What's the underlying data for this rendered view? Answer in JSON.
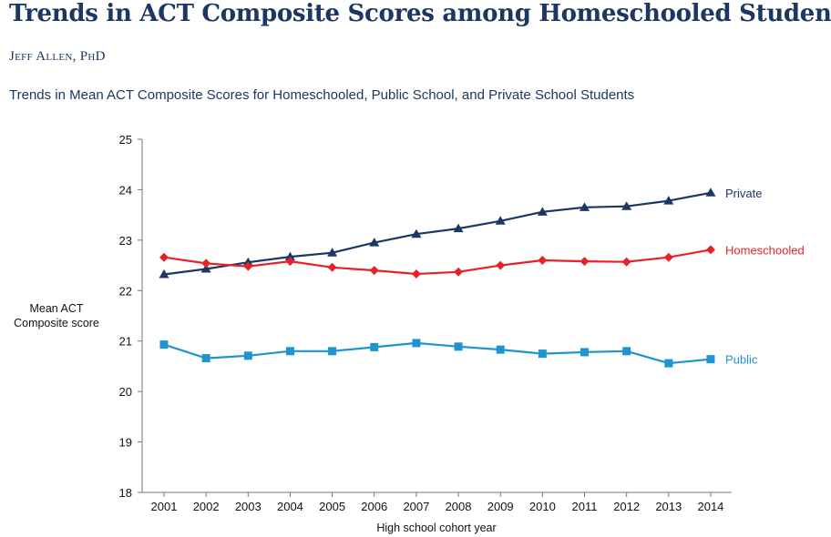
{
  "header": {
    "title": "Trends in ACT Composite Scores among  Homeschooled Students",
    "author": "Jeff Allen, PhD",
    "subtitle": "Trends in Mean ACT Composite Scores for Homeschooled, Public School, and Private School Students"
  },
  "chart_data": {
    "type": "line",
    "title": "Trends in Mean ACT Composite Scores for Homeschooled, Public School, and Private School Students",
    "xlabel": "High school cohort year",
    "ylabel_lines": [
      "Mean ACT",
      "Composite score"
    ],
    "ylim": [
      18,
      25
    ],
    "yticks": [
      "18",
      "19",
      "20",
      "21",
      "22",
      "23",
      "24",
      "25"
    ],
    "categories": [
      "2001",
      "2002",
      "2003",
      "2004",
      "2005",
      "2006",
      "2007",
      "2008",
      "2009",
      "2010",
      "2011",
      "2012",
      "2013",
      "2014"
    ],
    "series": [
      {
        "name": "Private",
        "color": "#1c3763",
        "marker": "triangle",
        "values": [
          22.32,
          22.43,
          22.56,
          22.67,
          22.75,
          22.95,
          23.12,
          23.23,
          23.38,
          23.56,
          23.65,
          23.67,
          23.78,
          23.94
        ]
      },
      {
        "name": "Homeschooled",
        "color": "#e8202a",
        "marker": "diamond",
        "values": [
          22.66,
          22.54,
          22.48,
          22.58,
          22.46,
          22.4,
          22.33,
          22.37,
          22.5,
          22.6,
          22.58,
          22.57,
          22.66,
          22.81
        ]
      },
      {
        "name": "Public",
        "color": "#1e94d0",
        "marker": "square",
        "values": [
          20.93,
          20.66,
          20.71,
          20.8,
          20.8,
          20.88,
          20.96,
          20.89,
          20.83,
          20.75,
          20.78,
          20.8,
          20.56,
          20.64
        ]
      }
    ],
    "legend_placement": "line-end labels"
  }
}
